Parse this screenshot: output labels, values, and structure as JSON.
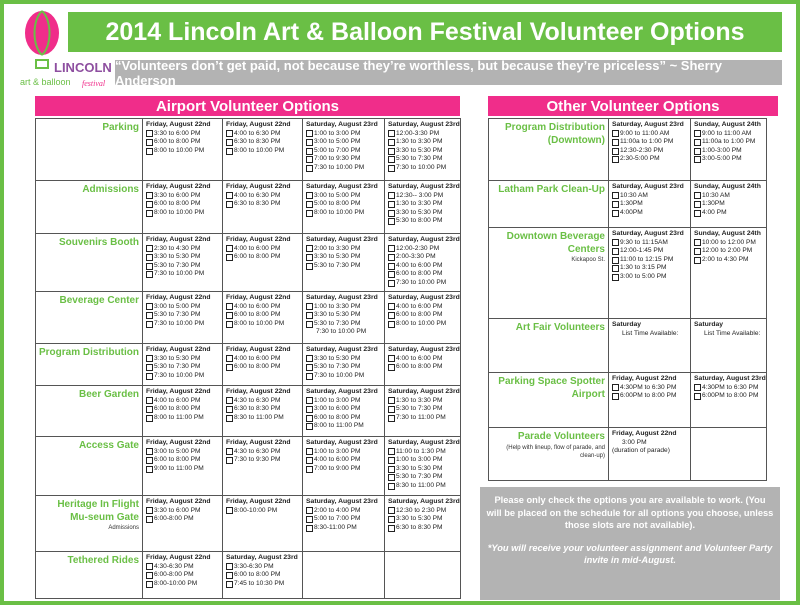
{
  "logo": {
    "text_line1": "LINCOLN",
    "text_line2": "art & balloon",
    "text_line3": "festival"
  },
  "title": "2014 Lincoln Art & Balloon Festival Volunteer Options",
  "quote": "“Volunteers don’t get paid, not because they’re worthless, but because they’re priceless” ~ Sherry Anderson",
  "colors": {
    "green": "#6abf45",
    "pink": "#f02d8a",
    "gray": "#b3b3b3"
  },
  "airport": {
    "heading": "Airport Volunteer Options",
    "rows": [
      {
        "label": "Parking",
        "cells": [
          {
            "h": "Friday, August 22nd",
            "s": [
              "3:30 to 6:00 PM",
              "6:00 to 8:00 PM",
              "8:00 to 10:00 PM"
            ]
          },
          {
            "h": "Friday, August 22nd",
            "s": [
              "4:00 to 6:30 PM",
              "6:30 to 8:30 PM",
              "8:00 to 10:00 PM"
            ]
          },
          {
            "h": "Saturday, August 23rd",
            "s": [
              "1:00 to 3:00 PM",
              "3:00 to 5:00 PM",
              "5:00 to 7:00 PM",
              "7:00 to 9:30 PM",
              "7:30 to 10:00 PM"
            ]
          },
          {
            "h": "Saturday, August 23rd",
            "s": [
              "12:00-3:30 PM",
              "1:30 to 3:30 PM",
              "3:30 to 5:30 PM",
              "5:30 to 7:30 PM",
              "7:30 to 10:00 PM"
            ]
          }
        ]
      },
      {
        "label": "Admissions",
        "cells": [
          {
            "h": "Friday, August 22nd",
            "s": [
              "3:30 to 6:00 PM",
              "6:00 to 8:00 PM",
              "8:00 to 10:00 PM"
            ]
          },
          {
            "h": "Friday, August 22nd",
            "s": [
              "4:00 to 6:30 PM",
              "6:30 to 8:30 PM"
            ]
          },
          {
            "h": "Saturday, August 23rd",
            "s": [
              "3:00 to 5:00 PM",
              "5:00 to 8:00 PM",
              "8:00 to 10:00 PM"
            ]
          },
          {
            "h": "Saturday, August 23rd",
            "s": [
              "12:30-- 3:00 PM",
              "1:30 to 3:30 PM",
              "3:30 to 5:30 PM",
              "5:30 to 8:00 PM"
            ]
          }
        ]
      },
      {
        "label": "Souvenirs Booth",
        "cells": [
          {
            "h": "Friday, August 22nd",
            "s": [
              "2:30 to 4:30 PM",
              "3:30 to 5:30 PM",
              "5:30 to 7:30 PM",
              "7:30 to 10:00 PM"
            ]
          },
          {
            "h": "Friday, August 22nd",
            "s": [
              "4:00 to 6:00 PM",
              "6:00 to 8:00 PM"
            ]
          },
          {
            "h": "Saturday, August 23rd",
            "s": [
              "2:00 to 3:30 PM",
              "3:30 to 5:30 PM",
              "5:30 to 7:30 PM"
            ]
          },
          {
            "h": "Saturday, August 23rd",
            "s": [
              "12:00-2:30 PM",
              "2:00-3:30 PM",
              "4:00 to 6:00 PM",
              "6:00 to 8:00 PM",
              "7:30 to 10:00 PM"
            ]
          }
        ]
      },
      {
        "label": "Beverage Center",
        "cells": [
          {
            "h": "Friday, August 22nd",
            "s": [
              "3:00 to 5:00 PM",
              "5:30 to 7:30 PM",
              "7:30 to 10:00 PM"
            ]
          },
          {
            "h": "Friday, August 22nd",
            "s": [
              "4:00 to 6:00 PM",
              "6:00 to 8:00 PM",
              "8:00 to 10:00 PM"
            ]
          },
          {
            "h": "Saturday, August 23rd",
            "s": [
              "1:00 to 3:30 PM",
              "3:30 to 5:30 PM",
              "5:30 to 7:30 PM"
            ],
            "extra": "7:30 to 10:00 PM"
          },
          {
            "h": "Saturday, August 23rd",
            "s": [
              "4:00 to 6:00 PM",
              "6:00 to 8:00 PM",
              "8:00 to 10:00 PM"
            ]
          }
        ]
      },
      {
        "label": "Program Distribution",
        "cells": [
          {
            "h": "Friday, August 22nd",
            "s": [
              "3:30 to 5:30 PM",
              "5:30 to 7:30 PM",
              "7:30 to 10:00 PM"
            ]
          },
          {
            "h": "Friday, August 22nd",
            "s": [
              "4:00 to 6:00 PM",
              "6:00 to 8:00 PM"
            ]
          },
          {
            "h": "Saturday, August 23rd",
            "s": [
              "3:30 to 5:30 PM",
              "5:30 to 7:30 PM",
              "7:30 to 10:00 PM"
            ]
          },
          {
            "h": "Saturday, August 23rd",
            "s": [
              "4:00 to 6:00 PM",
              "6:00 to 8:00 PM"
            ]
          }
        ]
      },
      {
        "label": "Beer Garden",
        "cells": [
          {
            "h": "Friday, August 22nd",
            "s": [
              "4:00 to 6:00 PM",
              "6:00 to 8:00 PM",
              "8:00 to 11:00 PM"
            ]
          },
          {
            "h": "Friday, August 22nd",
            "s": [
              "4:30 to 6:30 PM",
              "6:30 to 8:30 PM",
              "8:30 to 11:00 PM"
            ]
          },
          {
            "h": "Saturday, August 23rd",
            "s": [
              "1:00 to 3:00 PM",
              "3:00 to 6:00 PM",
              "6:00 to 8:00 PM",
              "8:00 to 11:00 PM"
            ]
          },
          {
            "h": "Saturday, August 23rd",
            "s": [
              "1:30 to 3:30 PM",
              "5:30 to 7:30 PM",
              "7:30 to 11:00 PM"
            ]
          }
        ]
      },
      {
        "label": "Access Gate",
        "cells": [
          {
            "h": "Friday, August 22nd",
            "s": [
              "3:00 to 5:00 PM",
              "6:00 to 8:00 PM",
              "9:00 to 11:00 PM"
            ]
          },
          {
            "h": "Friday, August 22nd",
            "s": [
              "4:30 to 6:30 PM",
              "7:30 to 9:30 PM"
            ]
          },
          {
            "h": "Saturday, August 23rd",
            "s": [
              "1:00 to 3:00 PM",
              "4:00 to 6:00 PM",
              "7:00 to 9:00 PM"
            ]
          },
          {
            "h": "Saturday, August 23rd",
            "s": [
              "11:00 to 1:30 PM",
              "1:00 to 3:00 PM",
              "3:30 to 5:30 PM",
              "5:30 to 7:30 PM",
              "8:30 to 11:00 PM"
            ]
          }
        ]
      },
      {
        "label": "Heritage In Flight Mu-seum Gate",
        "sub": "Admissions",
        "cells": [
          {
            "h": "Friday, August 22nd",
            "s": [
              "3:30 to 6:00 PM",
              "6:00-8:00 PM"
            ]
          },
          {
            "h": "Friday, August 22nd",
            "s": [
              "8:00-10:00 PM"
            ]
          },
          {
            "h": "Saturday, August 23rd",
            "s": [
              "2:00 to 4:00 PM",
              "5:00 to 7:00 PM",
              "8:30-11:00 PM"
            ]
          },
          {
            "h": "Saturday, August 23rd",
            "s": [
              "12:30 to 2:30 PM",
              "3:30 to 5:30 PM",
              "6:30 to 8:30 PM"
            ]
          }
        ]
      },
      {
        "label": "Tethered Rides",
        "cells": [
          {
            "h": "Friday, August 22nd",
            "s": [
              "4:30-6:30 PM",
              "6:00-8:00 PM",
              "8:00-10:00 PM"
            ]
          },
          {
            "h": "Saturday, August 23rd",
            "s": [
              "3:30-6:30 PM",
              "6:00 to 8:00 PM",
              "7:45 to 10:30 PM"
            ]
          },
          {
            "h": "",
            "s": []
          },
          {
            "h": "",
            "s": []
          }
        ]
      }
    ]
  },
  "other": {
    "heading": "Other Volunteer Options",
    "rows": [
      {
        "label": "Program Distribution (Downtown)",
        "cells": [
          {
            "h": "Saturday, August 23rd",
            "s": [
              "9:00 to 11:00 AM",
              "11:00a to 1:00 PM",
              "12:30-2:30 PM",
              "2:30-5:00 PM"
            ]
          },
          {
            "h": "Sunday, August 24th",
            "s": [
              "9:00 to 11:00 AM",
              "11:00a to 1:00 PM",
              "1:00-3:00 PM",
              "3:00-5:00 PM"
            ]
          }
        ]
      },
      {
        "label": "Latham Park Clean-Up",
        "cells": [
          {
            "h": "Saturday, August 23rd",
            "s": [
              "10:30 AM",
              "1:30PM",
              "4:00PM"
            ]
          },
          {
            "h": "Sunday, August 24th",
            "s": [
              "10:30 AM",
              "1:30PM",
              "4:00 PM"
            ]
          }
        ]
      },
      {
        "label": "Downtown Beverage Centers",
        "sub": "Kickapoo St.",
        "cells": [
          {
            "h": "Saturday, August 23rd",
            "s": [
              "9:30 to 11:15AM",
              "12:00-1:45 PM",
              "11:00 to 12:15 PM",
              "1:30 to 3:15 PM",
              "3:00 to 5:00 PM"
            ]
          },
          {
            "h": "Sunday, August 24th",
            "s": [
              "10:00 to 12:00 PM",
              "12:00 to 2:00 PM",
              "2:00 to 4:30 PM"
            ]
          }
        ]
      },
      {
        "label": "Art Fair Volunteers",
        "cells": [
          {
            "h": "Saturday",
            "s": [],
            "extra": "List Time Available:"
          },
          {
            "h": "Saturday",
            "s": [],
            "extra": "List Time Available:"
          }
        ]
      },
      {
        "label": "Parking Space Spotter Airport",
        "cells": [
          {
            "h": "Friday, August 22nd",
            "s": [
              "4:30PM to  6:30 PM",
              "6:00PM to 8:00 PM"
            ]
          },
          {
            "h": "Saturday, August 23rd",
            "s": [
              "4:30PM to  6:30 PM",
              "6:00PM to 8:00 PM"
            ]
          }
        ]
      },
      {
        "label": "Parade Volunteers",
        "sub": "(Help with lineup, flow of parade, and clean-up)",
        "cells": [
          {
            "h": "Friday, August 22nd",
            "s": [],
            "extra": "3:00 PM",
            "extra2": "(duration of parade)"
          },
          {
            "h": "",
            "s": []
          }
        ]
      }
    ]
  },
  "note": {
    "line1": "Please only check the options you are available to work. (You will be placed on the schedule for all options you choose, unless those slots are not available).",
    "line2": "*You will receive your volunteer assignment and Volunteer Party  invite in mid-August."
  }
}
